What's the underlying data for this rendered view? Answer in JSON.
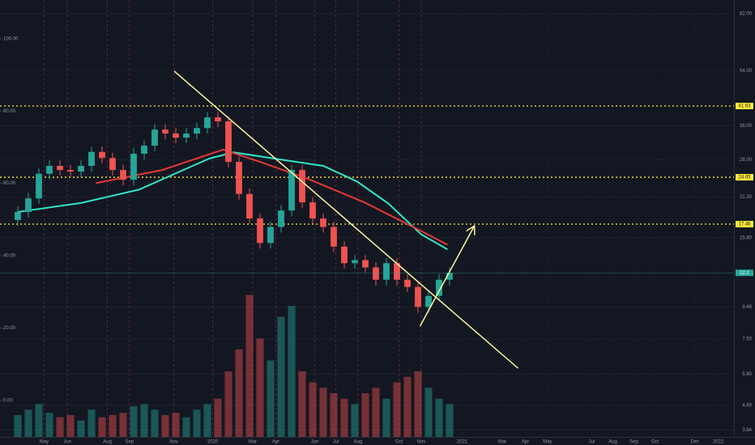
{
  "chart_data": {
    "type": "candlestick",
    "xlim": [
      -1,
      68
    ],
    "xticks": [
      {
        "value": 2.5,
        "label": "May"
      },
      {
        "value": 4.7,
        "label": "Jun"
      },
      {
        "value": 8.5,
        "label": "Aug"
      },
      {
        "value": 10.6,
        "label": "Sep"
      },
      {
        "value": 14.8,
        "label": "Nov"
      },
      {
        "value": 18.5,
        "label": "2020"
      },
      {
        "value": 22.3,
        "label": "Mar"
      },
      {
        "value": 24.5,
        "label": "Apr"
      },
      {
        "value": 28.2,
        "label": "Jun"
      },
      {
        "value": 30.2,
        "label": "Jul"
      },
      {
        "value": 32.3,
        "label": "Aug"
      },
      {
        "value": 36.2,
        "label": "Oct"
      },
      {
        "value": 38.3,
        "label": "Nov"
      },
      {
        "value": 42.2,
        "label": "2021"
      },
      {
        "value": 46,
        "label": "Mar"
      },
      {
        "value": 48.2,
        "label": "Apr"
      },
      {
        "value": 50.3,
        "label": "May"
      },
      {
        "value": 54.5,
        "label": "Jul"
      },
      {
        "value": 56.5,
        "label": "Aug"
      },
      {
        "value": 58.5,
        "label": "Sep"
      },
      {
        "value": 60.5,
        "label": "Oct"
      },
      {
        "value": 64.3,
        "label": "Dec"
      },
      {
        "value": 66.5,
        "label": "2022"
      }
    ],
    "ylim": [
      -10.1,
      110.7
    ],
    "yticks": [
      {
        "value": 100,
        "label": "100.00"
      },
      {
        "value": 80,
        "label": "80.00"
      },
      {
        "value": 60,
        "label": "60.00"
      },
      {
        "value": 40,
        "label": "40.00"
      },
      {
        "value": 20,
        "label": "20.00"
      },
      {
        "value": 0,
        "label": "0.00"
      }
    ],
    "y2lim": [
      3.65,
      90.8
    ],
    "y2log": true,
    "y2ticks": [
      {
        "value": 82,
        "label": "82.00"
      },
      {
        "value": 54,
        "label": "54.00"
      },
      {
        "value": 36,
        "label": "36.00"
      },
      {
        "value": 28,
        "label": "28.00"
      },
      {
        "value": 21.3,
        "label": "21.30"
      },
      {
        "value": 15.8,
        "label": "15.80"
      },
      {
        "value": 9.48,
        "label": "9.48"
      },
      {
        "value": 7.5,
        "label": "7.50"
      },
      {
        "value": 5.8,
        "label": "5.80"
      },
      {
        "value": 4.6,
        "label": "4.60"
      },
      {
        "value": 3.84,
        "label": "3.84"
      }
    ],
    "up_color": "#26a69a",
    "down_color": "#ef5350",
    "open": [
      18.0,
      19.1,
      21.1,
      25.3,
      26.8,
      26.0,
      25.7,
      26.8,
      29.7,
      28.4,
      26.0,
      24.2,
      29.3,
      31.1,
      35.0,
      34.0,
      33.0,
      34.0,
      35.4,
      38.3,
      37.2,
      27.6,
      21.8,
      18.2,
      15.2,
      17.1,
      19.3,
      26.0,
      20.5,
      18.2,
      17.1,
      14.8,
      13.1,
      13.4,
      12.7,
      11.6,
      13.1,
      11.6,
      11.0,
      9.5,
      10.3,
      11.6
    ],
    "high": [
      19.9,
      22.0,
      26.3,
      27.9,
      27.9,
      27.0,
      27.9,
      30.9,
      30.9,
      29.5,
      27.0,
      30.5,
      32.3,
      36.4,
      36.4,
      35.4,
      35.4,
      36.8,
      39.8,
      39.8,
      38.7,
      28.7,
      22.7,
      18.9,
      17.8,
      20.1,
      27.0,
      27.0,
      21.3,
      18.9,
      17.8,
      15.4,
      13.9,
      13.9,
      13.2,
      13.6,
      13.6,
      12.1,
      11.4,
      10.7,
      12.1,
      12.7
    ],
    "low": [
      17.3,
      18.3,
      20.3,
      24.3,
      25.0,
      24.7,
      24.7,
      25.7,
      27.3,
      25.0,
      23.2,
      23.2,
      28.1,
      29.9,
      32.6,
      31.7,
      31.7,
      32.6,
      34.0,
      35.7,
      26.5,
      20.9,
      17.5,
      14.6,
      14.6,
      16.4,
      18.5,
      19.7,
      17.5,
      16.4,
      14.2,
      12.6,
      12.6,
      12.2,
      11.1,
      11.1,
      11.1,
      10.6,
      9.1,
      9.1,
      9.9,
      11.1
    ],
    "close": [
      19.1,
      21.1,
      25.3,
      26.8,
      26.0,
      25.7,
      26.8,
      29.7,
      28.4,
      26.0,
      24.2,
      29.3,
      31.1,
      35.0,
      34.0,
      33.0,
      34.0,
      35.4,
      38.3,
      37.2,
      27.6,
      21.8,
      18.2,
      15.2,
      17.1,
      19.3,
      26.0,
      20.5,
      18.2,
      17.1,
      14.8,
      13.1,
      13.4,
      12.7,
      11.6,
      13.1,
      11.6,
      11.0,
      9.5,
      10.3,
      11.6,
      12.2
    ],
    "volume": [
      20,
      25,
      30,
      22,
      18,
      20,
      15,
      25,
      18,
      20,
      22,
      28,
      30,
      25,
      20,
      22,
      18,
      25,
      30,
      35,
      60,
      80,
      130,
      90,
      70,
      110,
      120,
      60,
      50,
      45,
      40,
      35,
      30,
      40,
      45,
      35,
      50,
      55,
      60,
      45,
      35,
      30
    ],
    "vlim": [
      0,
      400
    ],
    "series": [
      {
        "color": "#2ee6c8",
        "x": [
          0,
          6,
          11.5,
          18.2,
          20.5,
          24.3,
          29,
          32.2,
          35.2,
          38.3,
          40.8
        ],
        "values": [
          19.1,
          20.4,
          22.5,
          28.3,
          29.6,
          28.3,
          26.8,
          23.9,
          20.3,
          16.2,
          14.5
        ]
      },
      {
        "color": "#e53935",
        "x": [
          7.4,
          13.7,
          19.5,
          23,
          27.5,
          32.9,
          38.3,
          40.8
        ],
        "values": [
          23.6,
          26.0,
          30.2,
          27.6,
          24.4,
          20.5,
          16.6,
          15.0
        ]
      }
    ],
    "lines": [
      {
        "color": "#fff59d",
        "x": [
          14.85,
          47.5
        ],
        "values": [
          53.8,
          6.05
        ]
      },
      {
        "color": "#fff59d",
        "x": [
          38.2,
          43.3
        ],
        "values": [
          8.25,
          17.1
        ],
        "arrow": true
      }
    ],
    "levels": [
      {
        "value": 41.63,
        "label": "41.63"
      },
      {
        "value": 24.65,
        "label": "24.65"
      },
      {
        "value": 17.46,
        "label": "17.46"
      }
    ],
    "level_color": "#ffeb3b"
  }
}
